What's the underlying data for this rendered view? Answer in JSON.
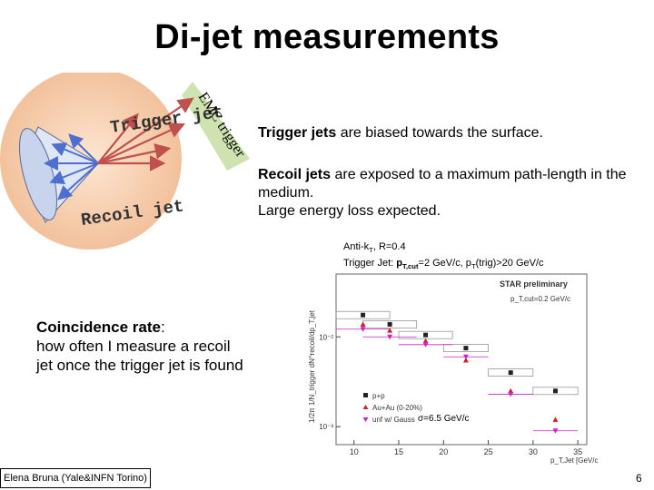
{
  "title": "Di-jet measurements",
  "diagram": {
    "trigger_label": "Trigger jet",
    "recoil_label": "Recoil jet",
    "emc_label": "EMC trigger"
  },
  "points": {
    "p1": {
      "bold": "Trigger jets",
      "rest": " are biased towards the surface."
    },
    "p2": {
      "bold": "Recoil jets",
      "rest": " are exposed to a maximum path-length in the medium.",
      "line2": "Large energy loss expected."
    }
  },
  "plot_info": {
    "line1_a": "Anti-k",
    "line1_sub": "T",
    "line1_b": ", R=0.4",
    "line2_a": "Trigger Jet: ",
    "line2_b": "p",
    "line2_sub": "T,cut",
    "line2_c": "=2 GeV/c, p",
    "line2_sub2": "T",
    "line2_d": "(trig)>20 GeV/c"
  },
  "chart_data": {
    "type": "scatter",
    "title": "STAR preliminary",
    "subtitle": "p_T,cut=0.2 GeV/c",
    "xlabel": "p_T,Jet [GeV/c]",
    "ylabel": "1/2π 1/N_trigger dN^recoil/dp_T,jet",
    "xlim": [
      8,
      36
    ],
    "ylim_log10": [
      -3.2,
      -1.3
    ],
    "ytick_labels": [
      "10⁻²",
      "10⁻³"
    ],
    "xtick_labels": [
      "10",
      "15",
      "20",
      "25",
      "30",
      "35"
    ],
    "xticks": [
      10,
      15,
      20,
      25,
      30,
      35
    ],
    "yticks": [
      0.01,
      0.001
    ],
    "annotation": "σ=6.5 GeV/c",
    "legend": [
      "p+p",
      "Au+Au (0-20%)",
      "unf w/ Gauss"
    ],
    "legend_placement": "bottom-left",
    "series": [
      {
        "name": "p+p",
        "color": "#222222",
        "marker": "square",
        "x": [
          11,
          14,
          18,
          22.5,
          27.5,
          32.5
        ],
        "y": [
          0.0175,
          0.0138,
          0.0105,
          0.0075,
          0.004,
          0.0025
        ]
      },
      {
        "name": "Au+Au (0-20%)",
        "color": "#cc2222",
        "marker": "triangle",
        "x": [
          11,
          14,
          18,
          22.5,
          27.5,
          32.5
        ],
        "y": [
          0.0138,
          0.0118,
          0.009,
          0.0055,
          0.0025,
          0.0012
        ]
      },
      {
        "name": "unf w/ Gauss",
        "color": "#cc22cc",
        "marker": "triangle-down",
        "x": [
          11,
          14,
          18,
          22.5,
          27.5,
          32.5
        ],
        "y": [
          0.0122,
          0.01,
          0.0082,
          0.006,
          0.0023,
          0.0009
        ]
      }
    ]
  },
  "coincidence": {
    "bold": "Coincidence rate",
    "rest": ":",
    "line2": "how often I measure a recoil",
    "line3": "jet once the trigger jet is found"
  },
  "footer": "Elena Bruna (Yale&INFN Torino)",
  "page_number": "6",
  "colors": {
    "sphere": "#f5cca8",
    "emc_bar": "#cfe3b0",
    "arrow_red": "#c0504d",
    "arrow_blue": "#4f6fd0"
  }
}
